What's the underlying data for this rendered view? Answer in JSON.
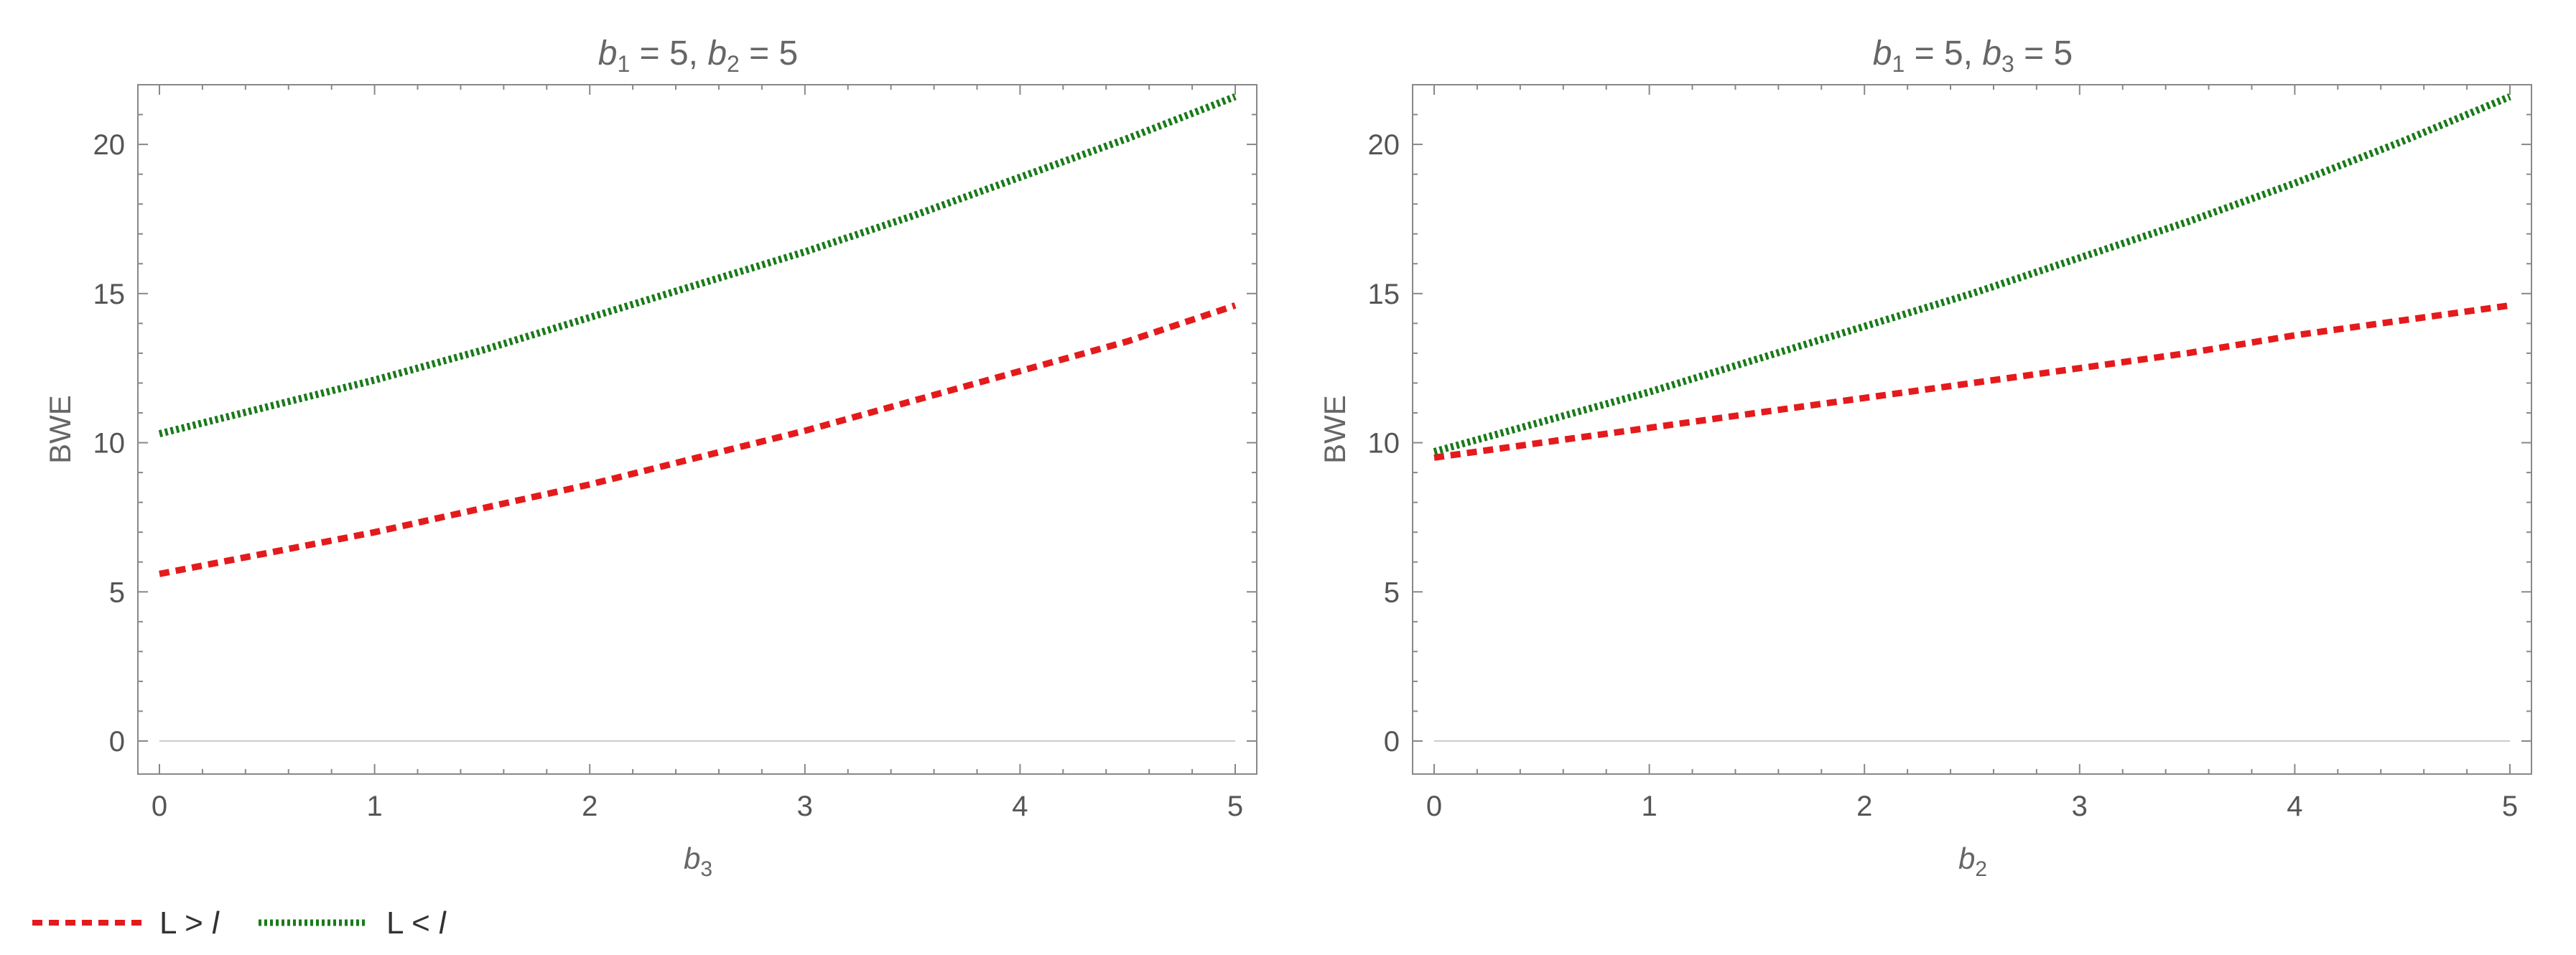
{
  "chart_data": [
    {
      "type": "line",
      "title": "b1 = 5, b2 = 5",
      "title_parts": [
        {
          "var": "b",
          "sub": "1",
          "rest": " = 5, "
        },
        {
          "var": "b",
          "sub": "2",
          "rest": " = 5"
        }
      ],
      "xlabel": "b3",
      "xlabel_parts": {
        "var": "b",
        "sub": "3"
      },
      "ylabel": "BWE",
      "xlim": [
        0,
        5
      ],
      "ylim": [
        0,
        22
      ],
      "xticks": [
        0,
        1,
        2,
        3,
        4,
        5
      ],
      "yticks": [
        0,
        5,
        10,
        15,
        20
      ],
      "x": [
        0,
        0.5,
        1,
        1.5,
        2,
        2.5,
        3,
        3.5,
        4,
        4.5,
        5
      ],
      "series": [
        {
          "name": "L > l",
          "color": "#e41a1c",
          "style": "dashed",
          "values": [
            5.6,
            6.3,
            7.0,
            7.8,
            8.6,
            9.5,
            10.4,
            11.4,
            12.4,
            13.4,
            14.6
          ]
        },
        {
          "name": "L < l",
          "color": "#1a7a1a",
          "style": "dotted",
          "values": [
            10.3,
            11.2,
            12.1,
            13.1,
            14.2,
            15.3,
            16.4,
            17.6,
            18.9,
            20.2,
            21.6
          ]
        }
      ]
    },
    {
      "type": "line",
      "title": "b1 = 5, b3 = 5",
      "title_parts": [
        {
          "var": "b",
          "sub": "1",
          "rest": " = 5, "
        },
        {
          "var": "b",
          "sub": "3",
          "rest": " = 5"
        }
      ],
      "xlabel": "b2",
      "xlabel_parts": {
        "var": "b",
        "sub": "2"
      },
      "ylabel": "BWE",
      "xlim": [
        0,
        5
      ],
      "ylim": [
        0,
        22
      ],
      "xticks": [
        0,
        1,
        2,
        3,
        4,
        5
      ],
      "yticks": [
        0,
        5,
        10,
        15,
        20
      ],
      "x": [
        0,
        0.5,
        1,
        1.5,
        2,
        2.5,
        3,
        3.5,
        4,
        4.5,
        5
      ],
      "series": [
        {
          "name": "L > l",
          "color": "#e41a1c",
          "style": "dashed",
          "values": [
            9.5,
            10.0,
            10.5,
            11.0,
            11.5,
            12.0,
            12.5,
            13.0,
            13.6,
            14.1,
            14.6
          ]
        },
        {
          "name": "L < l",
          "color": "#1a7a1a",
          "style": "dotted",
          "values": [
            9.7,
            10.7,
            11.7,
            12.8,
            13.9,
            15.0,
            16.2,
            17.4,
            18.7,
            20.1,
            21.6
          ]
        }
      ]
    }
  ],
  "legend": {
    "placement": "bottom-left",
    "items": [
      {
        "label_main": "L > ",
        "label_var": "l",
        "color": "#e41a1c",
        "style": "dashed"
      },
      {
        "label_main": "L < ",
        "label_var": "l",
        "color": "#1a7a1a",
        "style": "dotted"
      }
    ]
  }
}
